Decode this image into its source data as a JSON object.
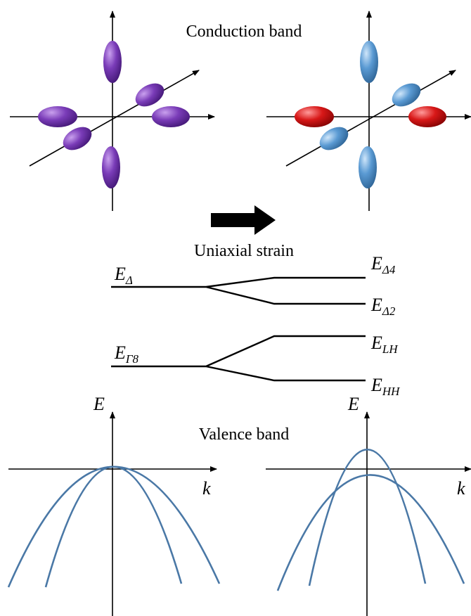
{
  "conduction": {
    "title": "Conduction band"
  },
  "strain": {
    "title": "Uniaxial strain"
  },
  "valence": {
    "title": "Valence band"
  },
  "levels": [
    {
      "main": "E",
      "sub": "Δ"
    },
    {
      "main": "E",
      "sub": "Δ4"
    },
    {
      "main": "E",
      "sub": "Δ2"
    },
    {
      "main": "E",
      "sub": "Γ8"
    },
    {
      "main": "E",
      "sub": "LH"
    },
    {
      "main": "E",
      "sub": "HH"
    }
  ],
  "axes": [
    {
      "y": "E",
      "x": "k"
    },
    {
      "y": "E",
      "x": "k"
    }
  ]
}
